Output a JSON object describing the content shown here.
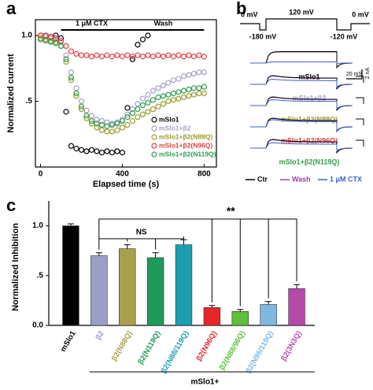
{
  "chart_data": [
    {
      "type": "scatter",
      "panel": "a",
      "x_label": "Elapsed time (s)",
      "y_label": "Normalized current",
      "x": [
        0,
        25,
        50,
        75,
        100,
        125,
        150,
        175,
        200,
        225,
        250,
        275,
        300,
        325,
        350,
        375,
        400,
        425,
        450,
        475,
        500,
        525,
        550,
        575,
        600,
        625,
        650,
        675,
        700,
        725,
        750,
        775,
        800
      ],
      "xlim": [
        -25,
        860
      ],
      "xticks": [
        0,
        400,
        800
      ],
      "ylim": [
        0,
        1.12
      ],
      "yticks": [
        {
          "value": 0.5,
          "label": ".5"
        },
        {
          "value": 1.0,
          "label": "1.0"
        }
      ],
      "annotations": [
        {
          "text": "1 μM CTX",
          "start": 100,
          "end": 400
        },
        {
          "text": "Wash",
          "start": 400,
          "end": 800
        }
      ],
      "series": [
        {
          "name": "mSlo1",
          "color": "#000000",
          "values": [
            1.0,
            1.0,
            0.99,
            1.0,
            0.98,
            0.42,
            0.16,
            0.14,
            0.13,
            0.12,
            0.13,
            0.12,
            0.11,
            0.12,
            0.11,
            0.12,
            0.11,
            0.45,
            0.82,
            0.93,
            0.97,
            1.0,
            null,
            null,
            null,
            null,
            null,
            null,
            null,
            null,
            null,
            null,
            null
          ]
        },
        {
          "name": "mSlo1+β2",
          "color": "#a79fc6",
          "values": [
            1.0,
            0.99,
            0.98,
            0.97,
            0.95,
            0.85,
            0.72,
            0.6,
            0.5,
            0.43,
            0.39,
            0.36,
            0.35,
            0.34,
            0.33,
            0.34,
            0.36,
            0.4,
            0.44,
            0.48,
            0.52,
            0.55,
            0.58,
            0.6,
            0.62,
            0.64,
            0.66,
            0.67,
            0.69,
            0.7,
            0.71,
            0.72,
            0.72
          ]
        },
        {
          "name": "mSlo1+β2(N88Q)",
          "color": "#9c9a2c",
          "values": [
            0.98,
            0.97,
            0.96,
            0.95,
            0.92,
            0.8,
            0.66,
            0.54,
            0.44,
            0.37,
            0.33,
            0.3,
            0.28,
            0.27,
            0.27,
            0.28,
            0.3,
            0.32,
            0.35,
            0.38,
            0.4,
            0.42,
            0.44,
            0.46,
            0.48,
            0.5,
            0.51,
            0.52,
            0.53,
            0.54,
            0.55,
            0.56,
            0.56
          ]
        },
        {
          "name": "mSlo1+β2(N96Q)",
          "color": "#e0413f",
          "values": [
            1.0,
            1.0,
            0.99,
            0.98,
            0.96,
            0.92,
            0.88,
            0.86,
            0.85,
            0.85,
            0.84,
            0.85,
            0.84,
            0.85,
            0.84,
            0.85,
            0.84,
            0.85,
            0.84,
            0.85,
            0.84,
            0.85,
            0.84,
            0.85,
            0.84,
            0.85,
            0.84,
            0.85,
            0.84,
            0.85,
            0.84,
            0.85,
            0.84
          ]
        },
        {
          "name": "mSlo1+β2(N119Q)",
          "color": "#2e9e4a",
          "values": [
            0.97,
            0.96,
            0.95,
            0.94,
            0.92,
            0.82,
            0.68,
            0.56,
            0.46,
            0.39,
            0.35,
            0.33,
            0.32,
            0.31,
            0.32,
            0.33,
            0.35,
            0.38,
            0.41,
            0.44,
            0.47,
            0.49,
            0.51,
            0.53,
            0.54,
            0.55,
            0.56,
            0.57,
            0.58,
            0.59,
            0.6,
            0.6,
            0.61
          ]
        }
      ]
    },
    {
      "type": "traces",
      "panel": "b",
      "protocol_labels": [
        "0 mV",
        "120 mV",
        "0 mV",
        "-180 mV",
        "-120 mV"
      ],
      "rows": [
        {
          "name": "mSlo1",
          "color": "#000000"
        },
        {
          "name": "mSlo1+β2",
          "color": "#a79fc6"
        },
        {
          "name": "mSlo1+β2(N88Q)",
          "color": "#9c9a2c"
        },
        {
          "name": "mSlo1+β2(N96Q)",
          "color": "#e0413f"
        },
        {
          "name": "mSlo1+β2(N119Q)",
          "color": "#2e9e4a"
        }
      ],
      "scale_time": "20 mS",
      "scale_current": "2 nA",
      "legend": [
        {
          "name": "Ctr",
          "color": "#000000"
        },
        {
          "name": "Wash",
          "color": "#9b3fb5"
        },
        {
          "name": "1 μM CTX",
          "color": "#3d5fc4"
        }
      ]
    },
    {
      "type": "bar",
      "panel": "c",
      "y_label": "Normalized Inhibition",
      "group_label": "mSlo1+",
      "categories": [
        "mSlo1",
        "β2",
        "β2(N88Q)",
        "β2(N119Q)",
        "β2(N88/119Q)",
        "β2(N96Q)",
        "β2(N88/96Q)",
        "β2(N96/119Q)",
        "β2(3N3Q)"
      ],
      "values": [
        1.0,
        0.7,
        0.77,
        0.68,
        0.81,
        0.18,
        0.14,
        0.21,
        0.37
      ],
      "errors": [
        0.02,
        0.03,
        0.04,
        0.05,
        0.05,
        0.02,
        0.02,
        0.03,
        0.04
      ],
      "colors": [
        "#000000",
        "#9a9fc8",
        "#a9a04a",
        "#1e9a5a",
        "#1b9fb0",
        "#e8262a",
        "#5fbf3a",
        "#7fb8e0",
        "#b54aa8"
      ],
      "ylim": [
        0,
        1.25
      ],
      "yticks": [
        {
          "value": 0,
          "label": "0.0"
        },
        {
          "value": 0.5,
          "label": ".5"
        },
        {
          "value": 1.0,
          "label": "1.0"
        }
      ],
      "annotations": [
        "NS",
        "**"
      ]
    }
  ]
}
